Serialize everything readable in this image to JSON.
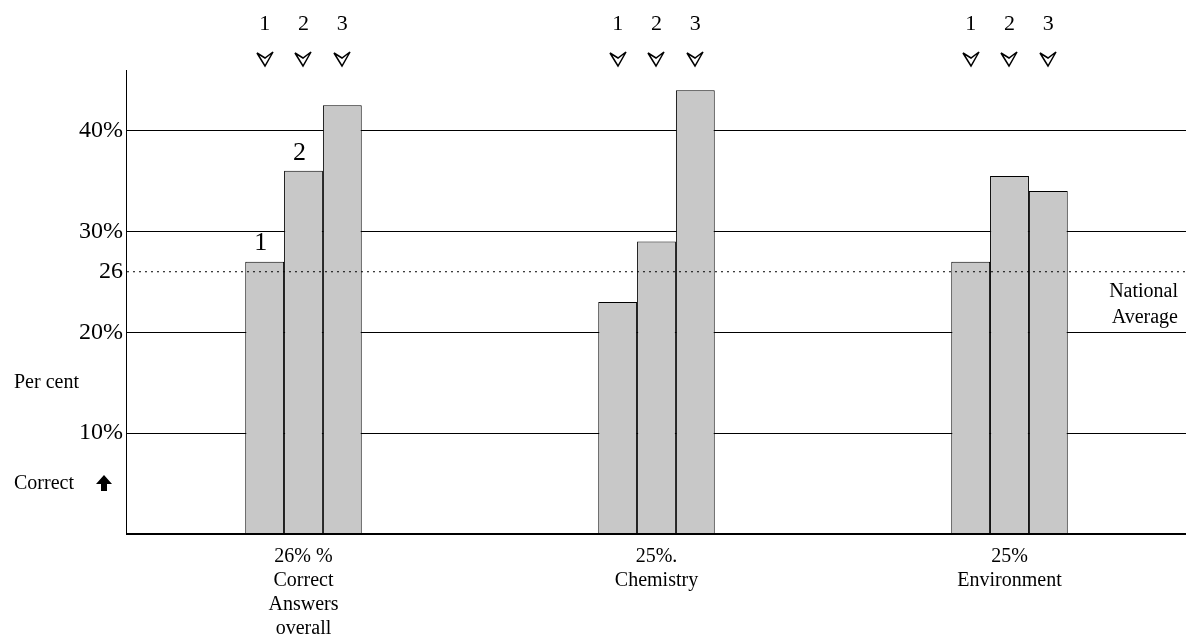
{
  "chart_data": {
    "type": "bar",
    "categories": [
      "26% % Correct Answers overall",
      "25%. Chemistry",
      "25% Environment"
    ],
    "series": [
      {
        "name": "1",
        "color": "#c8c8c8",
        "values": [
          27,
          23,
          27
        ]
      },
      {
        "name": "2",
        "color": "#c8c8c8",
        "values": [
          36,
          29,
          35.5
        ]
      },
      {
        "name": "3",
        "color": "#c8c8c8",
        "values": [
          42.5,
          44,
          34
        ]
      }
    ],
    "ylim": [
      0,
      46
    ],
    "yticks": [
      {
        "value": 10,
        "label": "10%"
      },
      {
        "value": 20,
        "label": "20%"
      },
      {
        "value": 26,
        "label": "26"
      },
      {
        "value": 30,
        "label": "30%"
      },
      {
        "value": 40,
        "label": "40%"
      }
    ],
    "ylabel": "Per cent",
    "annotations": [
      "Correct",
      "1",
      "2"
    ],
    "ref_lines": [
      {
        "axis": "y",
        "value": 26,
        "label": "National Average",
        "line_style": "dotted"
      }
    ],
    "grid": "y",
    "legend": false
  }
}
